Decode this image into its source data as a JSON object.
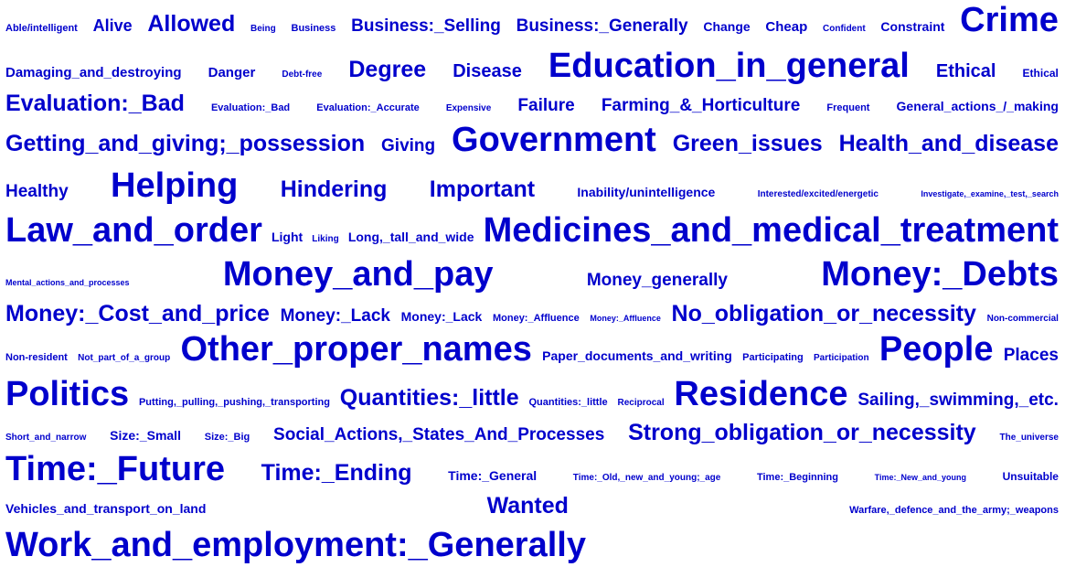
{
  "cloud": {
    "color": "#0000cc",
    "lines": [
      [
        {
          "text": "Able/intelligent",
          "weight": 11
        },
        {
          "text": "Alive",
          "weight": 18
        },
        {
          "text": "Allowed",
          "weight": 25
        },
        {
          "text": "Being",
          "weight": 10
        },
        {
          "text": "Business",
          "weight": 11
        },
        {
          "text": "Business:_Selling",
          "weight": 19
        },
        {
          "text": "Business:_Generally",
          "weight": 19
        },
        {
          "text": "Change",
          "weight": 14
        },
        {
          "text": "Cheap",
          "weight": 15
        },
        {
          "text": "Confident",
          "weight": 10
        },
        {
          "text": "Constraint",
          "weight": 14
        },
        {
          "text": "Crime",
          "weight": 38
        }
      ],
      [
        {
          "text": "Damaging_and_destroying",
          "weight": 15
        },
        {
          "text": "Danger",
          "weight": 15
        },
        {
          "text": "Debt-free",
          "weight": 10
        },
        {
          "text": "Degree",
          "weight": 25
        },
        {
          "text": "Disease",
          "weight": 20
        },
        {
          "text": "Education_in_general",
          "weight": 38
        },
        {
          "text": "Ethical",
          "weight": 20
        },
        {
          "text": "Ethical",
          "weight": 12
        }
      ],
      [
        {
          "text": "Evaluation:_Bad",
          "weight": 25
        },
        {
          "text": "Evaluation:_Bad",
          "weight": 11
        },
        {
          "text": "Evaluation:_Accurate",
          "weight": 11
        },
        {
          "text": "Expensive",
          "weight": 10
        },
        {
          "text": "Failure",
          "weight": 19
        },
        {
          "text": "Farming_&_Horticulture",
          "weight": 19
        },
        {
          "text": "Frequent",
          "weight": 11
        },
        {
          "text": "General_actions_/_making",
          "weight": 14
        }
      ],
      [
        {
          "text": "Getting_and_giving;_possession",
          "weight": 25
        },
        {
          "text": "Giving",
          "weight": 19
        },
        {
          "text": "Government",
          "weight": 38
        },
        {
          "text": "Green_issues",
          "weight": 25
        },
        {
          "text": "Health_and_disease",
          "weight": 25
        }
      ],
      [
        {
          "text": "Healthy",
          "weight": 19
        },
        {
          "text": "Helping",
          "weight": 38
        },
        {
          "text": "Hindering",
          "weight": 25
        },
        {
          "text": "Important",
          "weight": 25
        },
        {
          "text": "Inability/unintelligence",
          "weight": 14
        },
        {
          "text": "Interested/excited/energetic",
          "weight": 10
        },
        {
          "text": "Investigate,_examine,_test,_search",
          "weight": 9
        }
      ],
      [
        {
          "text": "Law_and_order",
          "weight": 38
        },
        {
          "text": "Light",
          "weight": 14
        },
        {
          "text": "Liking",
          "weight": 10
        },
        {
          "text": "Long,_tall_and_wide",
          "weight": 14
        },
        {
          "text": "Medicines_and_medical_treatment",
          "weight": 38
        }
      ],
      [
        {
          "text": "Mental_actions_and_processes",
          "weight": 9
        },
        {
          "text": "Money_and_pay",
          "weight": 38
        },
        {
          "text": "Money_generally",
          "weight": 19
        },
        {
          "text": "Money:_Debts",
          "weight": 38
        }
      ],
      [
        {
          "text": "Money:_Cost_and_price",
          "weight": 25
        },
        {
          "text": "Money:_Lack",
          "weight": 19
        },
        {
          "text": "Money:_Lack",
          "weight": 14
        },
        {
          "text": "Money:_Affluence",
          "weight": 11
        },
        {
          "text": "Money:_Affluence",
          "weight": 9
        },
        {
          "text": "No_obligation_or_necessity",
          "weight": 25
        },
        {
          "text": "Non-commercial",
          "weight": 10
        }
      ],
      [
        {
          "text": "Non-resident",
          "weight": 11
        },
        {
          "text": "Not_part_of_a_group",
          "weight": 10
        },
        {
          "text": "Other_proper_names",
          "weight": 38
        },
        {
          "text": "Paper_documents_and_writing",
          "weight": 14
        },
        {
          "text": "Participating",
          "weight": 11
        },
        {
          "text": "Participation",
          "weight": 10
        },
        {
          "text": "People",
          "weight": 38
        },
        {
          "text": "Places",
          "weight": 19
        }
      ],
      [
        {
          "text": "Politics",
          "weight": 38
        },
        {
          "text": "Putting,_pulling,_pushing,_transporting",
          "weight": 11
        },
        {
          "text": "Quantities:_little",
          "weight": 25
        },
        {
          "text": "Quantities:_little",
          "weight": 11
        },
        {
          "text": "Reciprocal",
          "weight": 10
        },
        {
          "text": "Residence",
          "weight": 38
        },
        {
          "text": "Sailing,_swimming,_etc.",
          "weight": 19
        }
      ],
      [
        {
          "text": "Short_and_narrow",
          "weight": 10
        },
        {
          "text": "Size:_Small",
          "weight": 14
        },
        {
          "text": "Size:_Big",
          "weight": 11
        },
        {
          "text": "Social_Actions,_States_And_Processes",
          "weight": 19
        },
        {
          "text": "Strong_obligation_or_necessity",
          "weight": 25
        },
        {
          "text": "The_universe",
          "weight": 10
        }
      ],
      [
        {
          "text": "Time:_Future",
          "weight": 38
        },
        {
          "text": "Time:_Ending",
          "weight": 25
        },
        {
          "text": "Time:_General",
          "weight": 14
        },
        {
          "text": "Time:_Old,_new_and_young;_age",
          "weight": 10
        },
        {
          "text": "Time:_Beginning",
          "weight": 11
        },
        {
          "text": "Time:_New_and_young",
          "weight": 9
        },
        {
          "text": "Unsuitable",
          "weight": 12
        }
      ],
      [
        {
          "text": "Vehicles_and_transport_on_land",
          "weight": 14
        },
        {
          "text": "Wanted",
          "weight": 25
        },
        {
          "text": "Warfare,_defence_and_the_army;_weapons",
          "weight": 11
        }
      ],
      [
        {
          "text": "Work_and_employment:_Generally",
          "weight": 38
        }
      ]
    ]
  }
}
